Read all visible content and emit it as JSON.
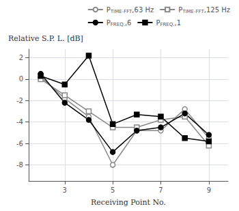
{
  "chart_data": {
    "type": "line",
    "xlabel": "Receiving Point No.",
    "ylabel": "Relative S.P. L. [dB]",
    "x": [
      2,
      3,
      4,
      5,
      6,
      7,
      8,
      9
    ],
    "series": [
      {
        "name": "PTIME-FFT,63 Hz",
        "color": "#888888",
        "marker": "open circle",
        "values": [
          0.2,
          -1.8,
          -3.5,
          -8.0,
          -4.8,
          -4.8,
          -2.8,
          -5.5
        ]
      },
      {
        "name": "PTIME-FFT,125 Hz",
        "color": "#888888",
        "marker": "open square",
        "values": [
          0.0,
          -1.5,
          -3.0,
          -4.5,
          -4.5,
          -3.8,
          -3.5,
          -6.2
        ]
      },
      {
        "name": "PFREQ.,6",
        "color": "#000000",
        "marker": "circle",
        "values": [
          0.5,
          -2.2,
          -3.8,
          -6.8,
          -4.8,
          -4.5,
          -3.2,
          -5.2
        ]
      },
      {
        "name": "PFREQ.,1",
        "color": "#000000",
        "marker": "square",
        "values": [
          0.3,
          -0.5,
          2.2,
          -4.2,
          -3.3,
          -3.5,
          -5.5,
          -5.8
        ]
      }
    ],
    "xlim": [
      1.5,
      9.8
    ],
    "xticks": [
      3,
      5,
      7,
      9
    ],
    "ylim": [
      -9.5,
      2.8
    ],
    "yticks": [
      -8,
      -6,
      -4,
      -2,
      0,
      2
    ],
    "grid": true,
    "legend": "upper right"
  }
}
